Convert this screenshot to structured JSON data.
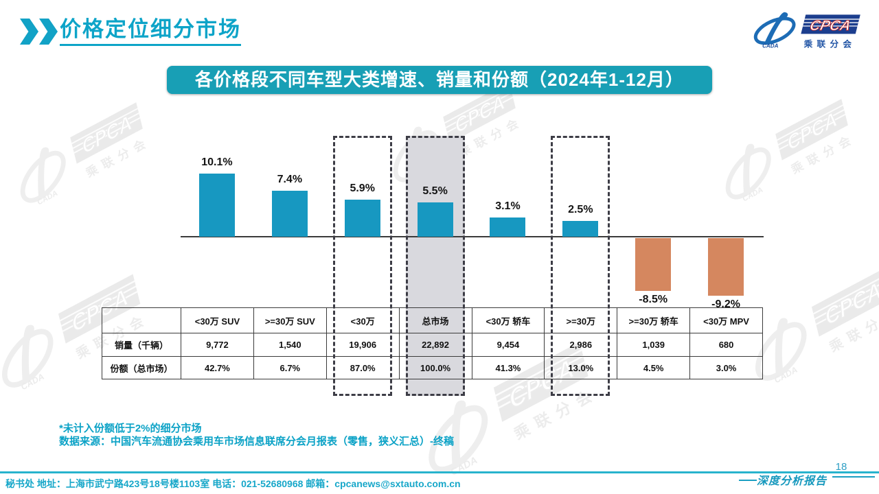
{
  "page": {
    "title": "价格定位细分市场",
    "banner": "各价格段不同车型大类增速、销量和份额（2024年1-12月）",
    "footnote1": "*未计入份额低于2%的细分市场",
    "footnote2": "数据来源：中国汽车流通协会乘用车市场信息联席分会月报表（零售，狭义汇总）-终稿",
    "footer": "秘书处  地址：上海市武宁路423号18号楼1103室 电话：021-52680968   邮箱：cpcanews@sxtauto.com.cn",
    "page_number": "18",
    "report_label": "深度分析报告"
  },
  "logo": {
    "cpca": "CPCA",
    "cada": "CADA",
    "subtitle": "乘联分会"
  },
  "colors": {
    "teal_bar": "#1798c1",
    "salmon_bar": "#d5875f",
    "banner_bg": "#189fb5",
    "accent_text": "#0da4c8",
    "gray_band": "#d9d9de",
    "dashed_border": "#3d3d46"
  },
  "chart_data": {
    "type": "bar",
    "title": "各价格段不同车型大类增速、销量和份额（2024年1-12月）",
    "categories": [
      "<30万 SUV",
      ">=30万 SUV",
      "<30万",
      "总市场",
      "<30万 轿车",
      ">=30万",
      ">=30万 轿车",
      "<30万 MPV"
    ],
    "values": [
      10.1,
      7.4,
      5.9,
      5.5,
      3.1,
      2.5,
      -8.5,
      -9.2
    ],
    "value_labels": [
      "10.1%",
      "7.4%",
      "5.9%",
      "5.5%",
      "3.1%",
      "2.5%",
      "-8.5%",
      "-9.2%"
    ],
    "unit": "%",
    "highlight_dashed": [
      "<30万",
      ">=30万"
    ],
    "highlight_gray": "总市场",
    "positive_color": "#1798c1",
    "negative_color": "#d5875f",
    "baseline_value": 0,
    "grid": false,
    "legend": false
  },
  "table": {
    "row_headers": [
      "销量（千辆）",
      "份额（总市场）"
    ],
    "columns": [
      "<30万 SUV",
      ">=30万 SUV",
      "<30万",
      "总市场",
      "<30万 轿车",
      ">=30万",
      ">=30万 轿车",
      "<30万 MPV"
    ],
    "rows": [
      [
        "9,772",
        "1,540",
        "19,906",
        "22,892",
        "9,454",
        "2,986",
        "1,039",
        "680"
      ],
      [
        "42.7%",
        "6.7%",
        "87.0%",
        "100.0%",
        "41.3%",
        "13.0%",
        "4.5%",
        "3.0%"
      ]
    ]
  }
}
